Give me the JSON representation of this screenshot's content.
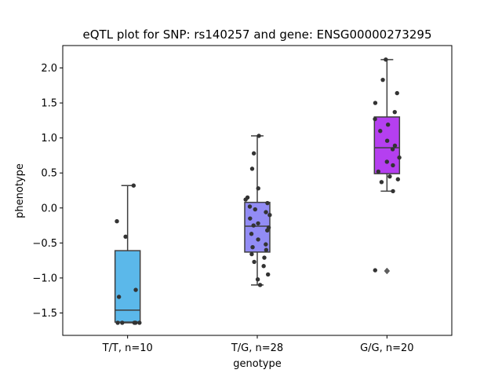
{
  "chart_data": {
    "type": "box",
    "title": "eQTL plot for SNP: rs140257 and gene: ENSG00000273295",
    "xlabel": "genotype",
    "ylabel": "phenotype",
    "ylim": [
      -1.82,
      2.32
    ],
    "yticks": [
      -1.5,
      -1.0,
      -0.5,
      0.0,
      0.5,
      1.0,
      1.5,
      2.0
    ],
    "ytick_labels": [
      "−1.5",
      "−1.0",
      "−0.5",
      "0.0",
      "0.5",
      "1.0",
      "1.5",
      "2.0"
    ],
    "categories": [
      "T/T, n=10",
      "T/G, n=28",
      "G/G, n=20"
    ],
    "groups": [
      {
        "label": "T/T, n=10",
        "color": "#5bb8ea",
        "q1": -1.63,
        "median": -1.46,
        "q3": -0.61,
        "whisker_low": -1.64,
        "whisker_high": 0.32,
        "outliers": [],
        "points": [
          0.32,
          -0.19,
          -0.41,
          -1.17,
          -1.27,
          -1.64,
          -1.64,
          -1.64,
          -1.64,
          -1.64
        ]
      },
      {
        "label": "T/G, n=28",
        "color": "#928cf5",
        "q1": -0.63,
        "median": -0.26,
        "q3": 0.08,
        "whisker_low": -1.1,
        "whisker_high": 1.03,
        "outliers": [],
        "points": [
          1.03,
          0.78,
          0.56,
          0.28,
          0.15,
          0.12,
          0.07,
          0.02,
          -0.02,
          -0.1,
          -0.15,
          -0.22,
          -0.28,
          -0.32,
          -0.37,
          -0.45,
          -0.52,
          -0.56,
          -0.6,
          -0.66,
          -0.71,
          -0.77,
          -0.83,
          -0.95,
          -1.02,
          -1.1,
          -0.25,
          -0.06
        ]
      },
      {
        "label": "G/G, n=20",
        "color": "#b53ff0",
        "q1": 0.49,
        "median": 0.86,
        "q3": 1.3,
        "whisker_low": 0.24,
        "whisker_high": 2.12,
        "outliers": [
          -0.9
        ],
        "points": [
          2.12,
          1.83,
          1.64,
          1.5,
          1.37,
          1.27,
          1.19,
          1.1,
          0.96,
          0.89,
          0.84,
          0.72,
          0.66,
          0.61,
          0.52,
          0.45,
          0.41,
          0.37,
          0.24,
          -0.89
        ]
      }
    ]
  }
}
